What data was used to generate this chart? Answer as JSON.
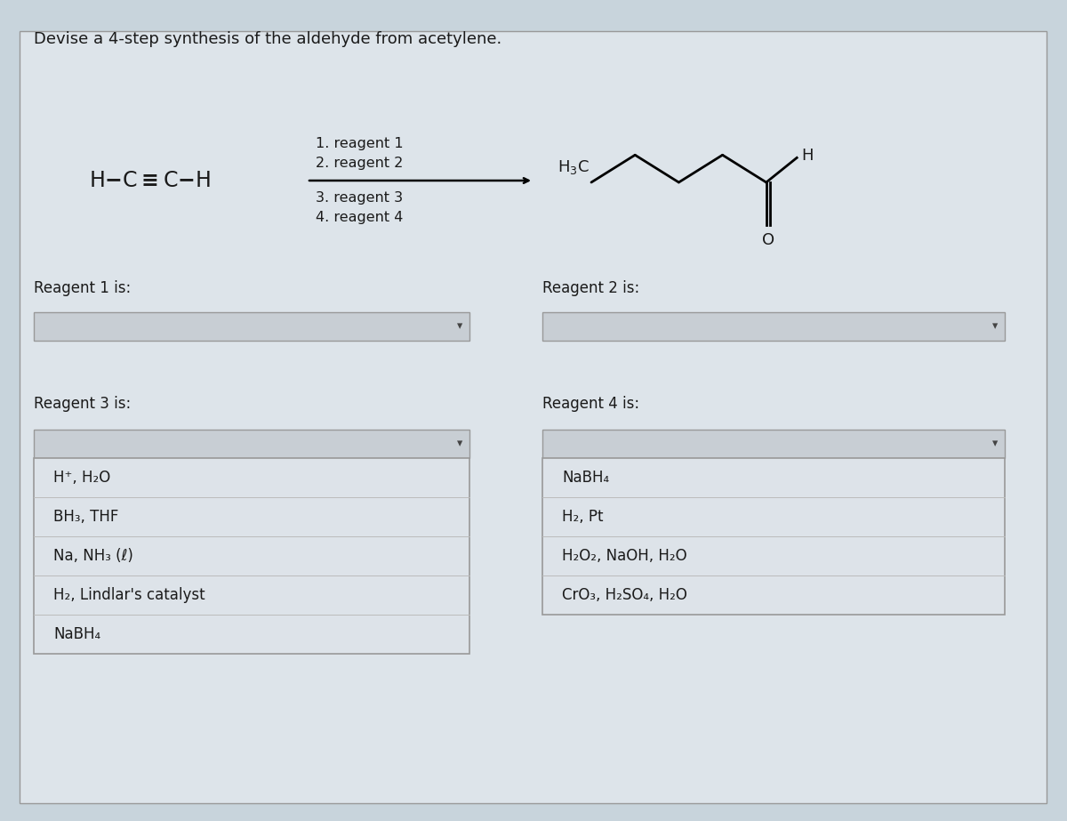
{
  "title": "Devise a 4-step synthesis of the aldehyde from acetylene.",
  "bg_color": "#c8d4dc",
  "panel_color": "#dde4ea",
  "text_color": "#1a1a1a",
  "dropdown_color": "#cdd5db",
  "dropdown_open_color": "#e0e5e9",
  "border_color": "#aaaaaa",
  "font_size_title": 13,
  "font_size_body": 12,
  "font_size_chem": 14,
  "reagent3_options": [
    "H⁺, H₂O",
    "BH₃, THF",
    "Na, NH₃ (ℓ)",
    "H₂, Lindlar's catalyst",
    "NaBH₄"
  ],
  "reagent4_options": [
    "NaBH₄",
    "H₂, Pt",
    "H₂O₂, NaOH, H₂O",
    "CrO₃, H₂SO₄, H₂O"
  ]
}
